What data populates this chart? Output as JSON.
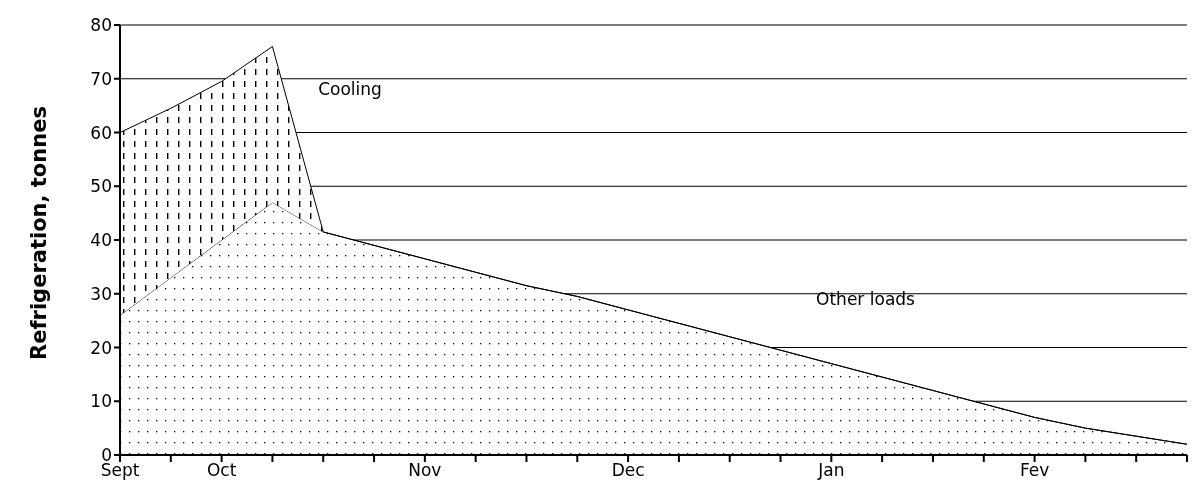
{
  "chart_data": {
    "type": "area",
    "stacked": true,
    "ylabel": "Refrigeration, tonnes",
    "categories": [
      "Sept",
      null,
      "Oct",
      null,
      null,
      null,
      "Nov",
      null,
      null,
      null,
      "Dec",
      null,
      null,
      null,
      "Jan",
      null,
      null,
      null,
      "Fev",
      null,
      null,
      null
    ],
    "ylim": [
      0,
      80
    ],
    "yticks": [
      0,
      10,
      20,
      30,
      40,
      50,
      60,
      70,
      80
    ],
    "grid": "y",
    "series": [
      {
        "name": "Other loads",
        "color": "#000000",
        "values": [
          26,
          33,
          40,
          47,
          41.5,
          39,
          36.5,
          34,
          31.5,
          29.5,
          27,
          24.5,
          22,
          19.5,
          17,
          14.5,
          12,
          9.5,
          7,
          5,
          3.5,
          2
        ]
      },
      {
        "name": "Cooling",
        "color": "#000000",
        "values": [
          34,
          31.5,
          29.5,
          29,
          0,
          0,
          0,
          0,
          0,
          0,
          0,
          0,
          0,
          0,
          0,
          0,
          0,
          0,
          0,
          0,
          0,
          0
        ]
      }
    ]
  }
}
